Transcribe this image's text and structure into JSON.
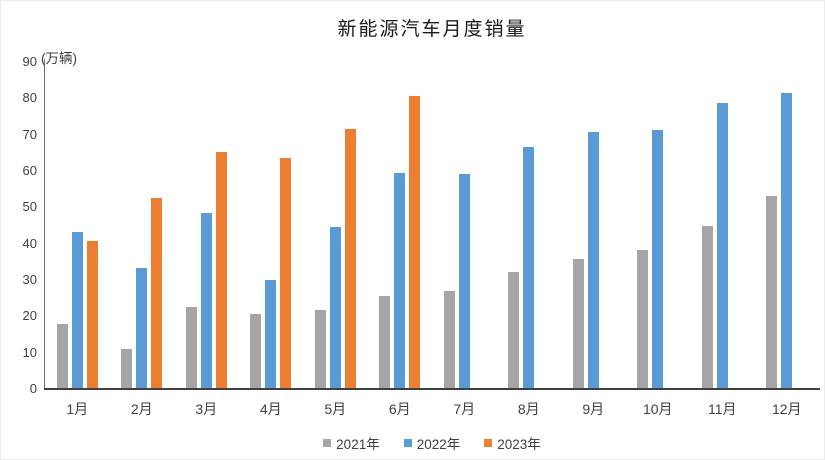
{
  "chart_data": {
    "type": "bar",
    "title": "新能源汽车月度销量",
    "unit_label": "(万辆)",
    "xlabel": "",
    "ylabel": "万辆",
    "categories": [
      "1月",
      "2月",
      "3月",
      "4月",
      "5月",
      "6月",
      "7月",
      "8月",
      "9月",
      "10月",
      "11月",
      "12月"
    ],
    "series": [
      {
        "name": "2021年",
        "color": "#A5A5A5",
        "values": [
          17.9,
          11.0,
          22.6,
          20.6,
          21.7,
          25.6,
          27.1,
          32.1,
          35.7,
          38.3,
          45.0,
          53.1
        ]
      },
      {
        "name": "2022年",
        "color": "#5B9BD5",
        "values": [
          43.1,
          33.4,
          48.4,
          29.9,
          44.7,
          59.6,
          59.3,
          66.6,
          70.8,
          71.4,
          78.6,
          81.4
        ]
      },
      {
        "name": "2023年",
        "color": "#ED7D31",
        "values": [
          40.8,
          52.5,
          65.3,
          63.6,
          71.7,
          80.6,
          null,
          null,
          null,
          null,
          null,
          null
        ]
      }
    ],
    "ylim": [
      0,
      90
    ],
    "yticks": [
      0,
      10,
      20,
      30,
      40,
      50,
      60,
      70,
      80,
      90
    ],
    "grid": false,
    "legend_position": "bottom"
  }
}
